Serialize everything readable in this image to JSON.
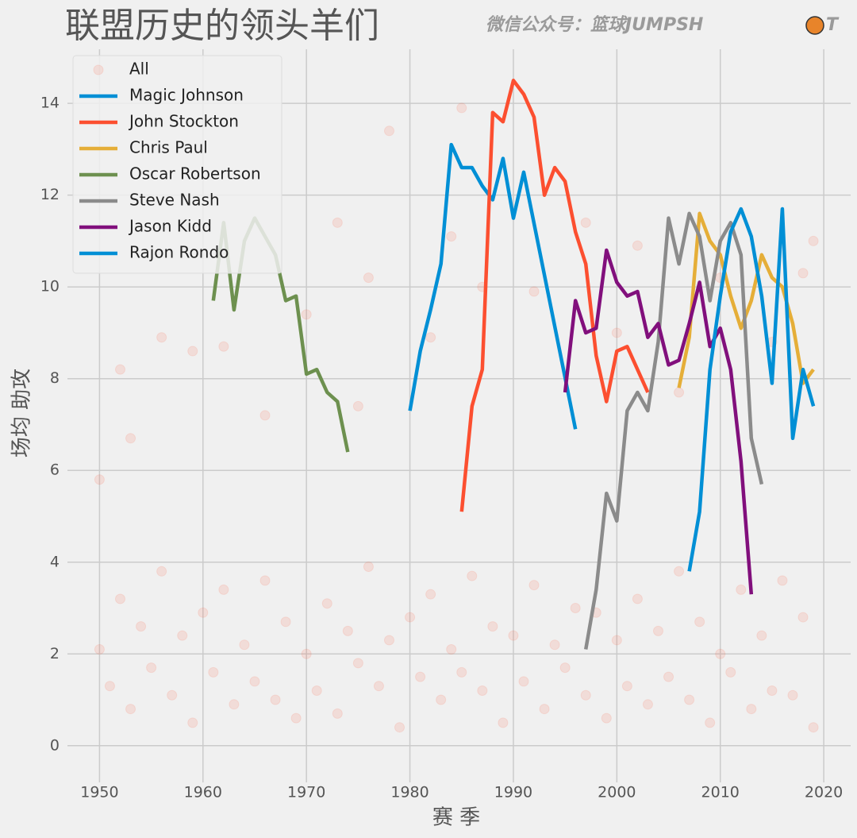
{
  "chart_data": {
    "type": "line",
    "title": "联盟历史的领头羊们",
    "watermark": [
      "微信公众号：篮球JUMPSH",
      "T"
    ],
    "x_label": "赛  季",
    "y_label": "场均 助攻",
    "xlim": [
      1946.9,
      2022.6
    ],
    "ylim": [
      -0.8,
      15.18
    ],
    "xticks": [
      1950,
      1960,
      1970,
      1980,
      1990,
      2000,
      2010,
      2020
    ],
    "yticks": [
      0,
      2,
      4,
      6,
      8,
      10,
      12,
      14
    ],
    "grid": true,
    "legend": "upper-left",
    "series": [
      {
        "name": "All",
        "type": "scatter",
        "color": "#fc4f30",
        "x": [
          1950,
          1951,
          1952,
          1953,
          1954,
          1955,
          1956,
          1957,
          1958,
          1959,
          1960,
          1961,
          1962,
          1963,
          1964,
          1965,
          1966,
          1967,
          1968,
          1969,
          1970,
          1971,
          1972,
          1973,
          1974,
          1975,
          1976,
          1977,
          1978,
          1979,
          1980,
          1981,
          1982,
          1983,
          1984,
          1985,
          1986,
          1987,
          1988,
          1989,
          1990,
          1991,
          1992,
          1993,
          1994,
          1995,
          1996,
          1997,
          1998,
          1999,
          2000,
          2001,
          2002,
          2003,
          2004,
          2005,
          2006,
          2007,
          2008,
          2009,
          2010,
          2011,
          2012,
          2013,
          2014,
          2015,
          2016,
          2017,
          2018,
          2019,
          1950,
          1952,
          1953,
          1956,
          1959,
          1962,
          1966,
          1970,
          1973,
          1975,
          1976,
          1978,
          1982,
          1984,
          1985,
          1987,
          1992,
          1997,
          2000,
          2002,
          2006,
          2010,
          2015,
          2018,
          2019
        ],
        "values": [
          2.1,
          1.3,
          3.2,
          0.8,
          2.6,
          1.7,
          3.8,
          1.1,
          2.4,
          0.5,
          2.9,
          1.6,
          3.4,
          0.9,
          2.2,
          1.4,
          3.6,
          1.0,
          2.7,
          0.6,
          2.0,
          1.2,
          3.1,
          0.7,
          2.5,
          1.8,
          3.9,
          1.3,
          2.3,
          0.4,
          2.8,
          1.5,
          3.3,
          1.0,
          2.1,
          1.6,
          3.7,
          1.2,
          2.6,
          0.5,
          2.4,
          1.4,
          3.5,
          0.8,
          2.2,
          1.7,
          3.0,
          1.1,
          2.9,
          0.6,
          2.3,
          1.3,
          3.2,
          0.9,
          2.5,
          1.5,
          3.8,
          1.0,
          2.7,
          0.5,
          2.0,
          1.6,
          3.4,
          0.8,
          2.4,
          1.2,
          3.6,
          1.1,
          2.8,
          0.4,
          5.8,
          8.2,
          6.7,
          8.9,
          8.6,
          8.7,
          7.2,
          9.4,
          11.4,
          7.4,
          10.2,
          13.4,
          8.9,
          11.1,
          13.9,
          10.0,
          9.9,
          11.4,
          9.0,
          10.9,
          7.7,
          10.2,
          8.8,
          10.3,
          11.0
        ]
      },
      {
        "name": "Magic Johnson",
        "type": "line",
        "color": "#008fd5",
        "x": [
          1980,
          1981,
          1982,
          1983,
          1984,
          1985,
          1986,
          1987,
          1988,
          1989,
          1990,
          1991,
          1996
        ],
        "values": [
          7.3,
          8.6,
          9.5,
          10.5,
          13.1,
          12.6,
          12.6,
          12.2,
          11.9,
          12.8,
          11.5,
          12.5,
          6.9
        ]
      },
      {
        "name": "John Stockton",
        "type": "line",
        "color": "#fc4f30",
        "x": [
          1985,
          1986,
          1987,
          1988,
          1989,
          1990,
          1991,
          1992,
          1993,
          1994,
          1995,
          1996,
          1997,
          1998,
          1999,
          2000,
          2001,
          2002,
          2003
        ],
        "values": [
          5.1,
          7.4,
          8.2,
          13.8,
          13.6,
          14.5,
          14.2,
          13.7,
          12.0,
          12.6,
          12.3,
          11.2,
          10.5,
          8.5,
          7.5,
          8.6,
          8.7,
          8.2,
          7.7
        ]
      },
      {
        "name": "Chris Paul",
        "type": "line",
        "color": "#e5ae38",
        "x": [
          2006,
          2007,
          2008,
          2009,
          2010,
          2011,
          2012,
          2013,
          2014,
          2015,
          2016,
          2017,
          2018,
          2019
        ],
        "values": [
          7.8,
          8.9,
          11.6,
          11.0,
          10.7,
          9.8,
          9.1,
          9.7,
          10.7,
          10.2,
          10.0,
          9.2,
          7.9,
          8.2
        ]
      },
      {
        "name": "Oscar Robertson",
        "type": "line",
        "color": "#6d904f",
        "x": [
          1961,
          1962,
          1963,
          1964,
          1965,
          1966,
          1967,
          1968,
          1969,
          1970,
          1971,
          1972,
          1973,
          1974
        ],
        "values": [
          9.7,
          11.4,
          9.5,
          11.0,
          11.5,
          11.1,
          10.7,
          9.7,
          9.8,
          8.1,
          8.2,
          7.7,
          7.5,
          6.4
        ]
      },
      {
        "name": "Steve Nash",
        "type": "line",
        "color": "#8b8b8b",
        "x": [
          1997,
          1998,
          1999,
          2000,
          2001,
          2002,
          2003,
          2004,
          2005,
          2006,
          2007,
          2008,
          2009,
          2010,
          2011,
          2012,
          2013,
          2014
        ],
        "values": [
          2.1,
          3.4,
          5.5,
          4.9,
          7.3,
          7.7,
          7.3,
          8.8,
          11.5,
          10.5,
          11.6,
          11.1,
          9.7,
          11.0,
          11.4,
          10.7,
          6.7,
          5.7
        ]
      },
      {
        "name": "Jason Kidd",
        "type": "line",
        "color": "#810f7c",
        "x": [
          1995,
          1996,
          1997,
          1998,
          1999,
          2000,
          2001,
          2002,
          2003,
          2004,
          2005,
          2006,
          2007,
          2008,
          2009,
          2010,
          2011,
          2012,
          2013
        ],
        "values": [
          7.7,
          9.7,
          9.0,
          9.1,
          10.8,
          10.1,
          9.8,
          9.9,
          8.9,
          9.2,
          8.3,
          8.4,
          9.2,
          10.1,
          8.7,
          9.1,
          8.2,
          6.2,
          3.3
        ]
      },
      {
        "name": "Rajon Rondo",
        "type": "line",
        "color": "#008fd5",
        "x": [
          2007,
          2008,
          2009,
          2010,
          2011,
          2012,
          2013,
          2014,
          2015,
          2016,
          2017,
          2018,
          2019
        ],
        "values": [
          3.8,
          5.1,
          8.2,
          9.8,
          11.2,
          11.7,
          11.1,
          9.8,
          7.9,
          11.7,
          6.7,
          8.2,
          7.4
        ]
      }
    ]
  }
}
